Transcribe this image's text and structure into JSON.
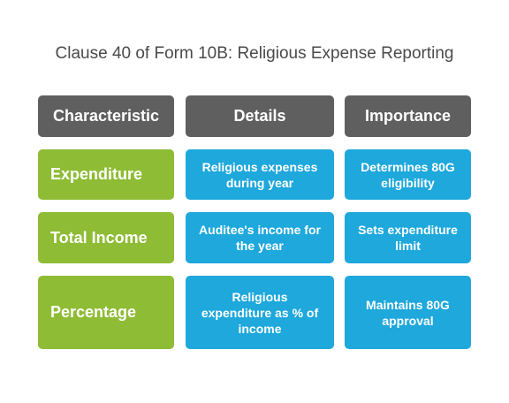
{
  "title": "Clause 40 of Form 10B: Religious Expense Reporting",
  "columns": [
    "Characteristic",
    "Details",
    "Importance"
  ],
  "rows": [
    {
      "characteristic": "Expenditure",
      "details": "Religious expenses during year",
      "importance": "Determines 80G eligibility"
    },
    {
      "characteristic": "Total Income",
      "details": "Auditee's income for the year",
      "importance": "Sets expenditure limit"
    },
    {
      "characteristic": "Percentage",
      "details": "Religious expenditure as % of income",
      "importance": "Maintains 80G approval"
    }
  ],
  "colors": {
    "header": "#5f5f5f",
    "characteristic": "#8ebc35",
    "info": "#1ea8dc"
  }
}
